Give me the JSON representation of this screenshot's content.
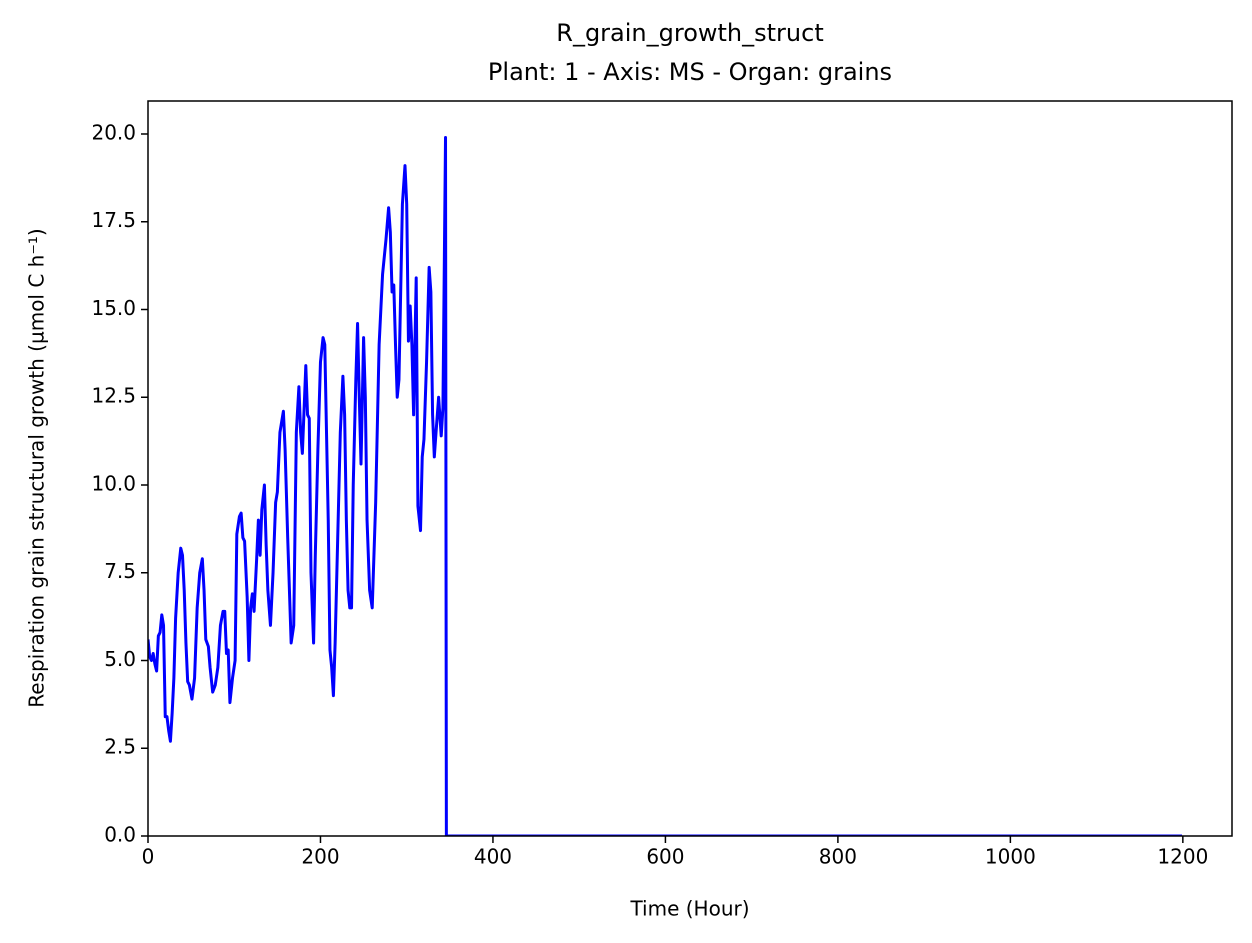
{
  "chart_data": {
    "type": "line",
    "title": "R_grain_growth_struct",
    "subtitle": "Plant: 1 - Axis: MS - Organ: grains",
    "x_label": "Time (Hour)",
    "y_label": "Respiration grain structural growth (µmol C h⁻¹)",
    "xlim": [
      0,
      1257
    ],
    "ylim": [
      0,
      20.94
    ],
    "xticks": [
      0,
      200,
      400,
      600,
      800,
      1000,
      1200
    ],
    "yticks": [
      {
        "value": 0,
        "label": "0.0"
      },
      2.5,
      {
        "value": 5,
        "label": "5.0"
      },
      7.5,
      {
        "value": 10,
        "label": "10.0"
      },
      12.5,
      {
        "value": 15,
        "label": "15.0"
      },
      17.5,
      {
        "value": 20,
        "label": "20.0"
      }
    ],
    "grid": false,
    "series": [
      {
        "color": "#0000ff",
        "x": [
          0,
          2,
          4,
          6,
          8,
          10,
          12,
          14,
          16,
          18,
          20,
          22,
          24,
          26,
          28,
          30,
          32,
          35,
          38,
          40,
          42,
          44,
          46,
          48,
          51,
          54,
          57,
          60,
          63,
          65,
          67,
          70,
          72,
          75,
          78,
          81,
          84,
          87,
          89,
          91,
          93,
          95,
          98,
          101,
          103,
          106,
          108,
          110,
          112,
          115,
          117,
          119,
          121,
          123,
          126,
          128,
          130,
          132,
          135,
          137,
          139,
          142,
          145,
          148,
          150,
          153,
          157,
          159,
          162,
          166,
          169,
          172,
          175,
          177,
          179,
          183,
          185,
          187,
          189,
          192,
          194,
          197,
          200,
          203,
          205,
          207,
          209,
          211,
          213,
          215,
          217,
          220,
          223,
          226,
          228,
          230,
          232,
          234,
          236,
          238,
          241,
          243,
          245,
          247,
          250,
          252,
          254,
          257,
          260,
          264,
          268,
          272,
          276,
          279,
          281,
          283,
          285,
          287,
          289,
          291,
          295,
          298,
          300,
          302,
          304,
          306,
          308,
          311,
          313,
          316,
          318,
          320,
          323,
          326,
          328,
          330,
          332,
          334,
          337,
          340,
          342,
          345,
          346,
          1199
        ],
        "values": [
          5.6,
          5.1,
          5.0,
          5.2,
          4.9,
          4.7,
          5.7,
          5.8,
          6.3,
          6.0,
          3.4,
          3.4,
          3.0,
          2.7,
          3.5,
          4.5,
          6.2,
          7.5,
          8.2,
          8.0,
          7.0,
          5.5,
          4.4,
          4.3,
          3.9,
          4.5,
          6.5,
          7.5,
          7.9,
          7.0,
          5.6,
          5.4,
          4.8,
          4.1,
          4.3,
          4.8,
          6.0,
          6.4,
          6.4,
          5.2,
          5.3,
          3.8,
          4.5,
          5.0,
          8.6,
          9.1,
          9.2,
          8.5,
          8.4,
          6.8,
          5.0,
          6.5,
          6.9,
          6.4,
          7.9,
          9.0,
          8.0,
          9.3,
          10.0,
          8.3,
          7.0,
          6.0,
          7.5,
          9.5,
          9.8,
          11.5,
          12.1,
          11.0,
          8.5,
          5.5,
          6.0,
          11.5,
          12.8,
          11.5,
          10.9,
          13.4,
          12.0,
          11.9,
          7.5,
          5.5,
          8.0,
          11.0,
          13.5,
          14.2,
          14.0,
          11.5,
          9.0,
          5.3,
          4.8,
          4.0,
          5.5,
          8.5,
          11.5,
          13.1,
          12.0,
          9.0,
          7.0,
          6.5,
          6.5,
          10.0,
          13.0,
          14.6,
          12.5,
          10.6,
          14.2,
          12.5,
          9.0,
          7.0,
          6.5,
          9.5,
          14.0,
          16.0,
          17.0,
          17.9,
          17.2,
          15.5,
          15.7,
          14.0,
          12.5,
          13.0,
          18.0,
          19.1,
          18.0,
          14.1,
          15.1,
          14.0,
          12.0,
          15.9,
          9.4,
          8.7,
          10.8,
          11.3,
          13.5,
          16.2,
          15.5,
          12.0,
          10.8,
          11.5,
          12.5,
          11.4,
          12.2,
          19.9,
          0,
          0
        ]
      }
    ]
  }
}
